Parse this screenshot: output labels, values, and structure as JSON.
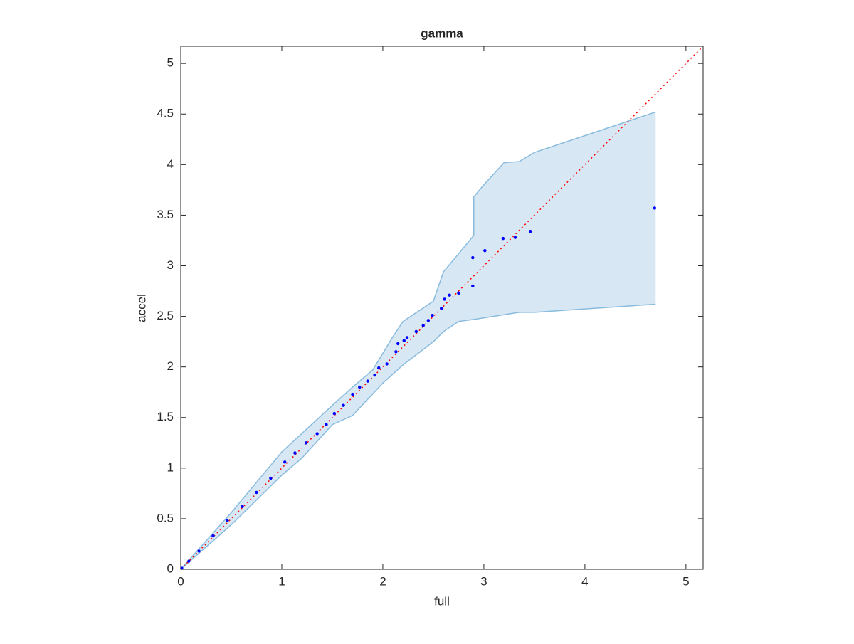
{
  "chart_data": {
    "type": "scatter",
    "title": "gamma",
    "x_label": "full",
    "y_label": "accel",
    "xlim": [
      0,
      5.17
    ],
    "ylim": [
      0,
      5.17
    ],
    "xticks": [
      0,
      1,
      2,
      3,
      4,
      5
    ],
    "yticks": [
      0,
      0.5,
      1,
      1.5,
      2,
      2.5,
      3,
      3.5,
      4,
      4.5,
      5
    ],
    "color": "#0000ff",
    "band_color": "#d7e7f3",
    "band_edge_color": "#88bbdd",
    "ref_color": "#ff0000",
    "x": [
      0.01,
      0.08,
      0.18,
      0.32,
      0.46,
      0.61,
      0.75,
      0.89,
      1.03,
      1.13,
      1.24,
      1.35,
      1.44,
      1.52,
      1.61,
      1.7,
      1.77,
      1.85,
      1.92,
      1.96,
      2.04,
      2.13,
      2.15,
      2.21,
      2.24,
      2.33,
      2.4,
      2.45,
      2.49,
      2.58,
      2.61,
      2.66,
      2.75,
      2.89,
      2.89,
      3.01,
      3.19,
      3.31,
      3.46,
      4.69
    ],
    "values": [
      0.01,
      0.08,
      0.18,
      0.33,
      0.48,
      0.62,
      0.76,
      0.9,
      1.06,
      1.15,
      1.25,
      1.34,
      1.43,
      1.54,
      1.62,
      1.73,
      1.8,
      1.86,
      1.92,
      1.99,
      2.03,
      2.15,
      2.23,
      2.26,
      2.29,
      2.35,
      2.41,
      2.46,
      2.51,
      2.58,
      2.67,
      2.71,
      2.73,
      2.8,
      3.08,
      3.15,
      3.27,
      3.28,
      3.34,
      3.57
    ],
    "reference": {
      "x": [
        0,
        5.17
      ],
      "y": [
        0,
        5.17
      ]
    },
    "band": {
      "upper": {
        "x": [
          0,
          0.5,
          1.0,
          1.5,
          1.7,
          1.9,
          2.1,
          2.2,
          2.5,
          2.6,
          2.75,
          2.9,
          2.9,
          3.0,
          3.2,
          3.35,
          3.5,
          4.7
        ],
        "y": [
          0,
          0.56,
          1.16,
          1.62,
          1.8,
          1.97,
          2.3,
          2.45,
          2.65,
          2.94,
          3.12,
          3.3,
          3.68,
          3.8,
          4.02,
          4.03,
          4.12,
          4.52
        ]
      },
      "lower": {
        "x": [
          0,
          0.5,
          1.0,
          1.2,
          1.5,
          1.7,
          2.0,
          2.2,
          2.5,
          2.6,
          2.75,
          2.9,
          3.35,
          3.5,
          4.7
        ],
        "y": [
          0,
          0.44,
          0.93,
          1.1,
          1.43,
          1.52,
          1.84,
          2.02,
          2.25,
          2.35,
          2.45,
          2.47,
          2.54,
          2.54,
          2.62
        ]
      }
    }
  }
}
